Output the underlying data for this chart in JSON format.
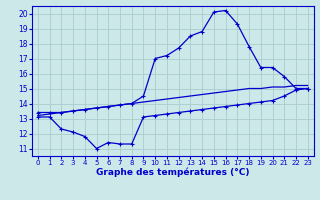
{
  "bg_color": "#cce8e8",
  "grid_color": "#aacccc",
  "line_color": "#0000cc",
  "xlabel": "Graphe des températures (°C)",
  "xlim": [
    -0.5,
    23.5
  ],
  "ylim": [
    10.5,
    20.5
  ],
  "yticks": [
    11,
    12,
    13,
    14,
    15,
    16,
    17,
    18,
    19,
    20
  ],
  "xticks": [
    0,
    1,
    2,
    3,
    4,
    5,
    6,
    7,
    8,
    9,
    10,
    11,
    12,
    13,
    14,
    15,
    16,
    17,
    18,
    19,
    20,
    21,
    22,
    23
  ],
  "series_max": {
    "x": [
      0,
      1,
      2,
      3,
      4,
      5,
      6,
      7,
      8,
      9,
      10,
      11,
      12,
      13,
      14,
      15,
      16,
      17,
      18,
      19,
      20,
      21,
      22,
      23
    ],
    "y": [
      13.4,
      13.4,
      13.4,
      13.5,
      13.6,
      13.7,
      13.8,
      13.9,
      14.0,
      14.5,
      17.0,
      17.2,
      17.7,
      18.5,
      18.8,
      20.1,
      20.2,
      19.3,
      17.8,
      16.4,
      16.4,
      15.8,
      15.0,
      15.0
    ]
  },
  "series_avg": {
    "x": [
      0,
      1,
      2,
      3,
      4,
      5,
      6,
      7,
      8,
      9,
      10,
      11,
      12,
      13,
      14,
      15,
      16,
      17,
      18,
      19,
      20,
      21,
      22,
      23
    ],
    "y": [
      13.2,
      13.3,
      13.4,
      13.5,
      13.6,
      13.7,
      13.8,
      13.9,
      14.0,
      14.1,
      14.2,
      14.3,
      14.4,
      14.5,
      14.6,
      14.7,
      14.8,
      14.9,
      15.0,
      15.0,
      15.1,
      15.1,
      15.2,
      15.2
    ]
  },
  "series_min": {
    "x": [
      0,
      1,
      2,
      3,
      4,
      5,
      6,
      7,
      8,
      9,
      10,
      11,
      12,
      13,
      14,
      15,
      16,
      17,
      18,
      19,
      20,
      21,
      22,
      23
    ],
    "y": [
      13.1,
      13.1,
      12.3,
      12.1,
      11.8,
      11.0,
      11.4,
      11.3,
      11.3,
      13.1,
      13.2,
      13.3,
      13.4,
      13.5,
      13.6,
      13.7,
      13.8,
      13.9,
      14.0,
      14.1,
      14.2,
      14.5,
      14.9,
      15.0
    ]
  }
}
